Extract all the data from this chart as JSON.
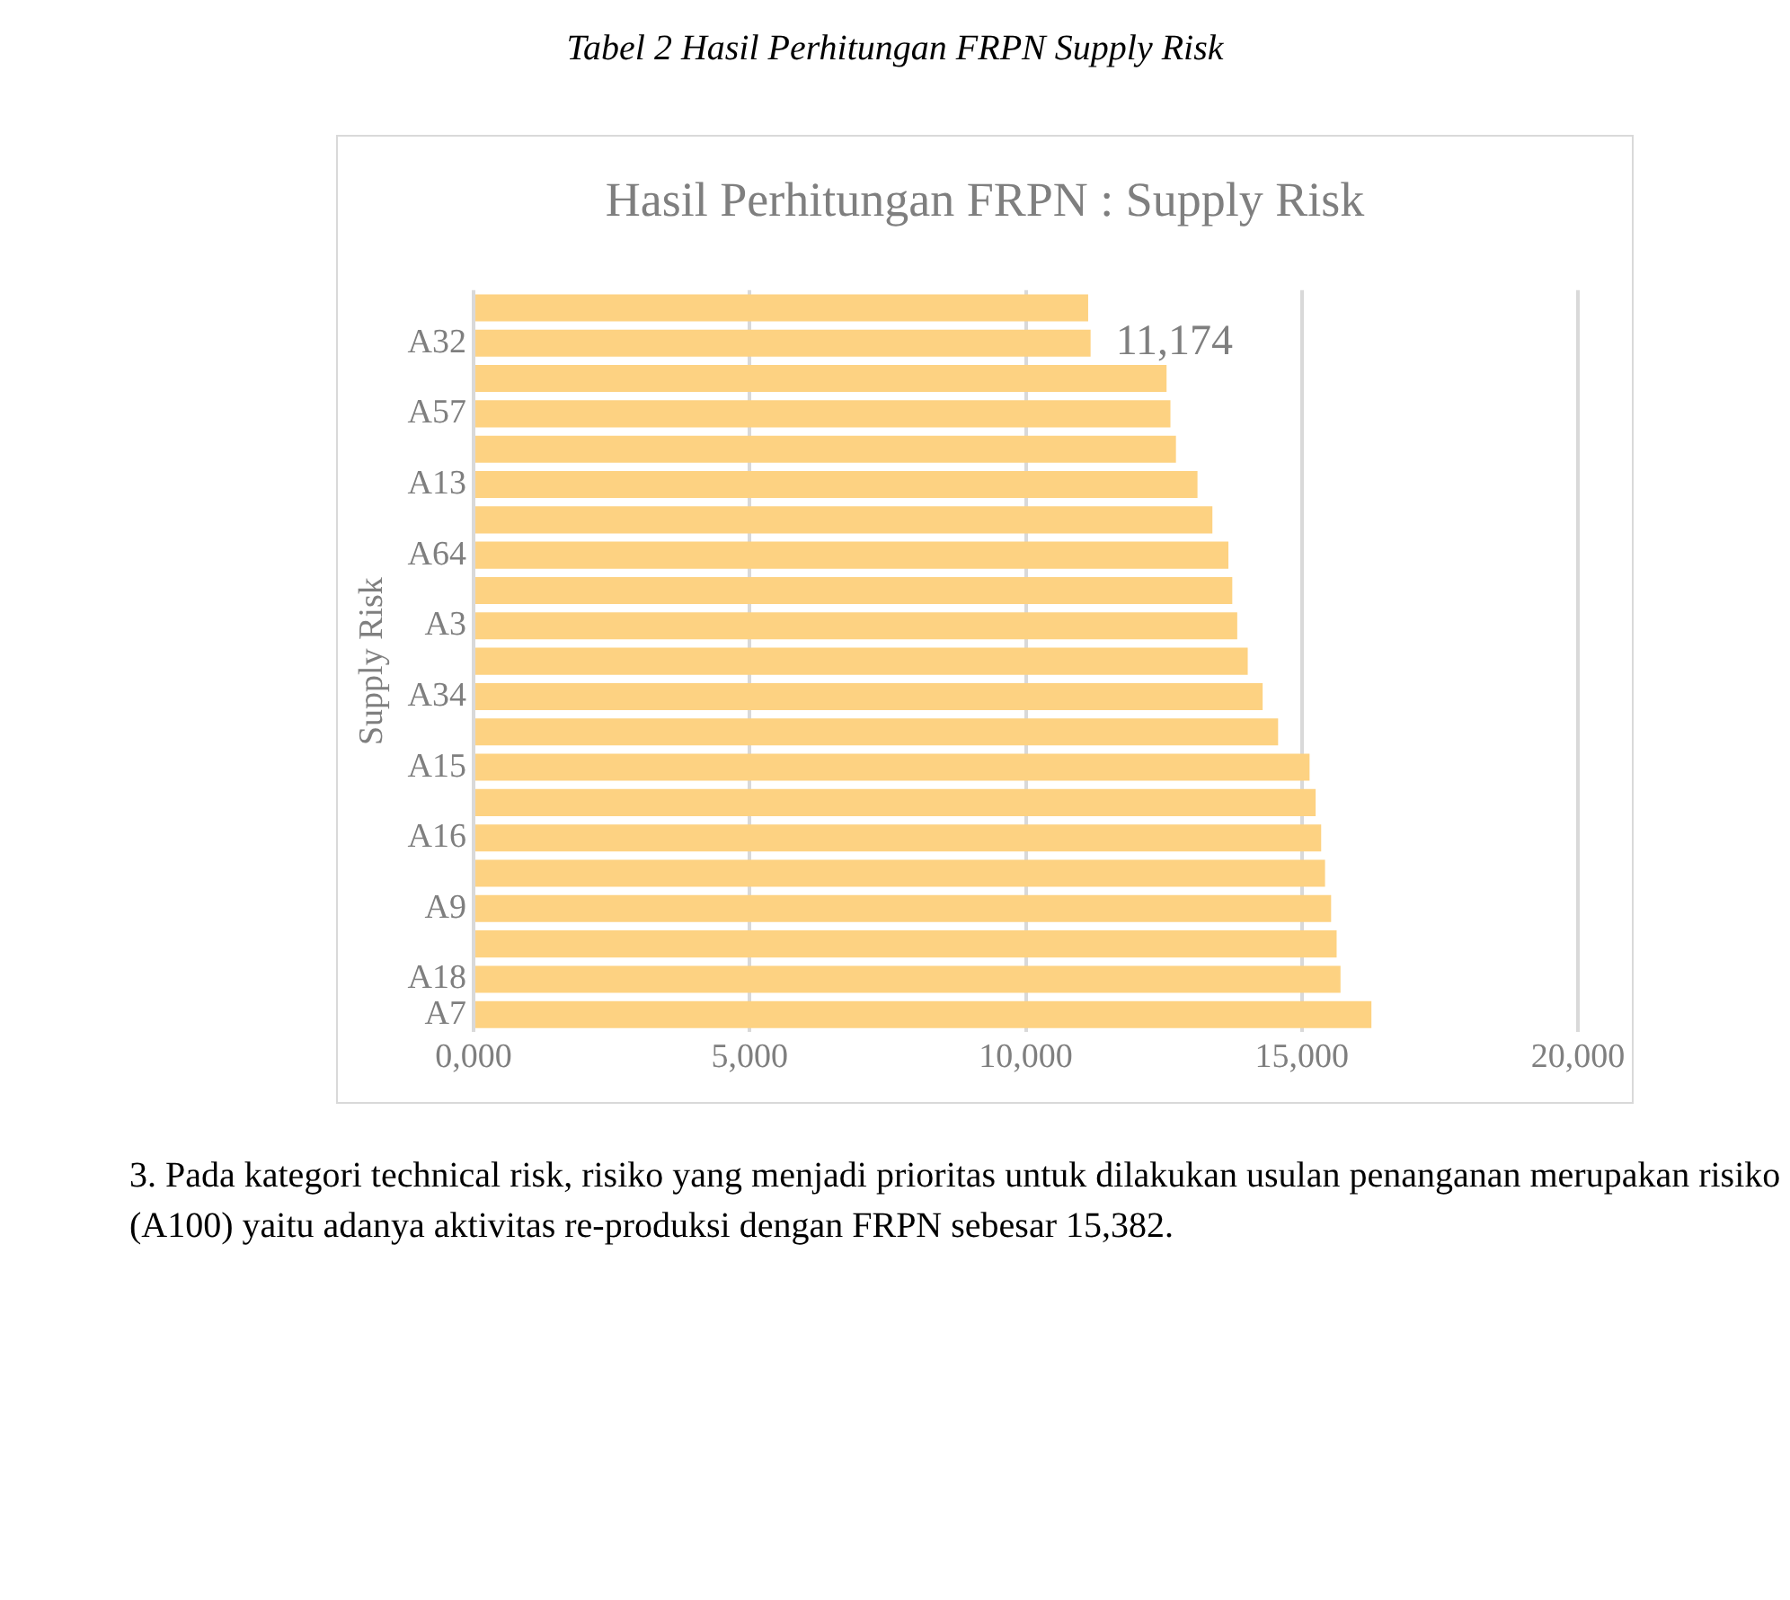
{
  "chart_data": {
    "type": "bar",
    "orientation": "horizontal",
    "title": "Hasil Perhitungan FRPN : Supply Risk",
    "ylabel": "Supply Risk",
    "categories": [
      null,
      "A32",
      null,
      "A57",
      null,
      "A13",
      null,
      "A64",
      null,
      "A3",
      null,
      "A34",
      null,
      "A15",
      null,
      "A16",
      null,
      "A9",
      null,
      "A18",
      "A7"
    ],
    "values": [
      11130,
      11174,
      12550,
      12620,
      12720,
      13110,
      13380,
      13670,
      13740,
      13830,
      14020,
      14290,
      14570,
      15140,
      15250,
      15350,
      15420,
      15530,
      15630,
      15700,
      16260
    ],
    "value_labels": [
      null,
      "11,174",
      null,
      null,
      null,
      null,
      null,
      null,
      null,
      null,
      null,
      null,
      null,
      null,
      null,
      null,
      null,
      null,
      null,
      null,
      null
    ],
    "color": "#fdd282",
    "xlim": [
      0,
      20000
    ],
    "xticks": [
      {
        "value": 0,
        "label": "0,000"
      },
      {
        "value": 5000,
        "label": "5,000"
      },
      {
        "value": 10000,
        "label": "10,000"
      },
      {
        "value": 15000,
        "label": "15,000"
      },
      {
        "value": 20000,
        "label": "20,000"
      }
    ],
    "grid": "x",
    "annotations": [
      "Tabel 2 Hasil Perhitungan FRPN Supply Risk",
      "3. Pada kategori technical risk, risiko yang menjadi prioritas untuk dilakukan usulan penanganan merupakan risiko (A100) yaitu adanya aktivitas re-produksi dengan FRPN sebesar 15,382."
    ]
  }
}
